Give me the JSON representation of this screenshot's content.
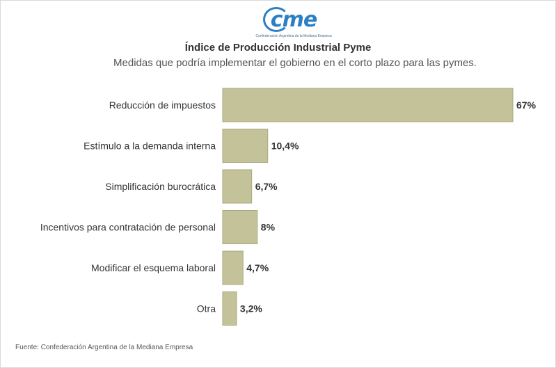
{
  "logo": {
    "text": "cme",
    "subtitle": "Confederación Argentina de la Mediana Empresa"
  },
  "title": "Índice de Producción Industrial Pyme",
  "subtitle": "Medidas que podría implementar el gobierno en el corto plazo para las pymes.",
  "source": "Fuente: Confederación Argentina de la Mediana Empresa",
  "colors": {
    "bar": "#c3c298",
    "bar_border": "#a9a87c",
    "text": "#333333"
  },
  "chart_data": {
    "type": "bar",
    "orientation": "horizontal",
    "categories": [
      "Reducción de impuestos",
      "Estímulo a la demanda interna",
      "Simplificación burocrática",
      "Incentivos para contratación de personal",
      "Modificar el esquema laboral",
      "Otra"
    ],
    "values": [
      67,
      10.4,
      6.7,
      8,
      4.7,
      3.2
    ],
    "value_labels": [
      "67%",
      "10,4%",
      "6,7%",
      "8%",
      "4,7%",
      "3,2%"
    ],
    "unit": "%",
    "xlim": [
      0,
      67
    ],
    "grid": false,
    "legend": "none"
  }
}
